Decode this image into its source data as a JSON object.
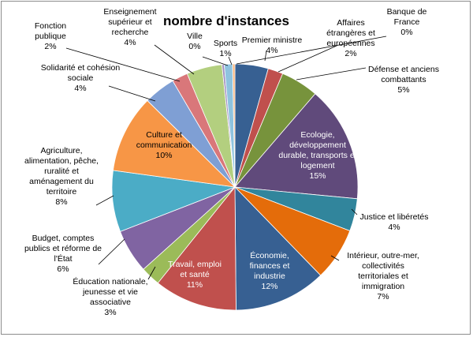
{
  "chart_data": {
    "type": "pie",
    "title": "nombre d'instances",
    "slices": [
      {
        "name": "Premier ministre",
        "value": 4,
        "label": "4%",
        "color": "#376092"
      },
      {
        "name": "Affaires étrangères et européennes",
        "value": 2,
        "label": "2%",
        "color": "#c0504d"
      },
      {
        "name": "Défense et anciens combattants",
        "value": 5,
        "label": "5%",
        "color": "#77933c"
      },
      {
        "name": "Ecologie, développement durable, transports et logement",
        "value": 15,
        "label": "15%",
        "color": "#604a7b"
      },
      {
        "name": "Justice et libéretés",
        "value": 4,
        "label": "4%",
        "color": "#31859c"
      },
      {
        "name": "Intérieur, outre-mer, collectivités territoriales et immigration",
        "value": 7,
        "label": "7%",
        "color": "#e46c0a"
      },
      {
        "name": "Économie, finances et industrie",
        "value": 12,
        "label": "12%",
        "color": "#376092"
      },
      {
        "name": "Travail, emploi et santé",
        "value": 11,
        "label": "11%",
        "color": "#c0504d"
      },
      {
        "name": "Éducation nationale, jeunesse et vie associative",
        "value": 3,
        "label": "3%",
        "color": "#9bbb59"
      },
      {
        "name": "Budget, comptes publics et réforme de l'État",
        "value": 6,
        "label": "6%",
        "color": "#8064a2"
      },
      {
        "name": "Agriculture, alimentation, pêche, ruralité et aménagement du territoire",
        "value": 8,
        "label": "8%",
        "color": "#4bacc6"
      },
      {
        "name": "Culture et communication",
        "value": 10,
        "label": "10%",
        "color": "#f79646"
      },
      {
        "name": "Solidarité et cohésion sociale",
        "value": 4,
        "label": "4%",
        "color": "#7f9fd4"
      },
      {
        "name": "Fonction publique",
        "value": 2,
        "label": "2%",
        "color": "#d9777a"
      },
      {
        "name": "Enseignement supérieur et recherche",
        "value": 4,
        "label": "4%",
        "color": "#b3cf7f"
      },
      {
        "name": "Ville",
        "value": 0,
        "label": "0%",
        "color": "#a08cc0"
      },
      {
        "name": "Sports",
        "value": 1,
        "label": "1%",
        "color": "#8fc3df"
      },
      {
        "name": "Banque de France",
        "value": 0,
        "label": "0%",
        "color": "#f9b47a"
      }
    ],
    "inside_labels": {
      "3": [
        "Ecologie,",
        "développement",
        "durable, transports et",
        "logement",
        "15%"
      ],
      "6": [
        "Économie,",
        "finances et",
        "industrie",
        "12%"
      ],
      "7": [
        "Travail, emploi",
        "et santé",
        "11%"
      ],
      "11": [
        "Culture et",
        "communication",
        "10%"
      ]
    },
    "outside_labels": {
      "0": [
        "Premier ministre",
        "4%"
      ],
      "1": [
        "Affaires",
        "étrangères et",
        "européennes",
        "2%"
      ],
      "2": [
        "Défense et anciens",
        "combattants",
        "5%"
      ],
      "4": [
        "Justice et libéretés",
        "4%"
      ],
      "5": [
        "Intérieur, outre-mer,",
        "collectivités",
        "territoriales et",
        "immigration",
        "7%"
      ],
      "8": [
        "Éducation nationale,",
        "jeunesse et vie",
        "associative",
        "3%"
      ],
      "9": [
        "Budget, comptes",
        "publics et réforme de",
        "l'État",
        "6%"
      ],
      "10": [
        "Agriculture,",
        "alimentation, pêche,",
        "ruralité et",
        "aménagement du",
        "territoire",
        "8%"
      ],
      "12": [
        "Solidarité et cohésion",
        "sociale",
        "4%"
      ],
      "13": [
        "Fonction",
        "publique",
        "2%"
      ],
      "14": [
        "Enseignement",
        "supérieur et",
        "recherche",
        "4%"
      ],
      "15": [
        "Ville",
        "0%"
      ],
      "16": [
        "Sports",
        "1%"
      ],
      "17": [
        "Banque de",
        "France",
        "0%"
      ]
    },
    "legend": "none",
    "start": "top",
    "direction": "clockwise"
  }
}
